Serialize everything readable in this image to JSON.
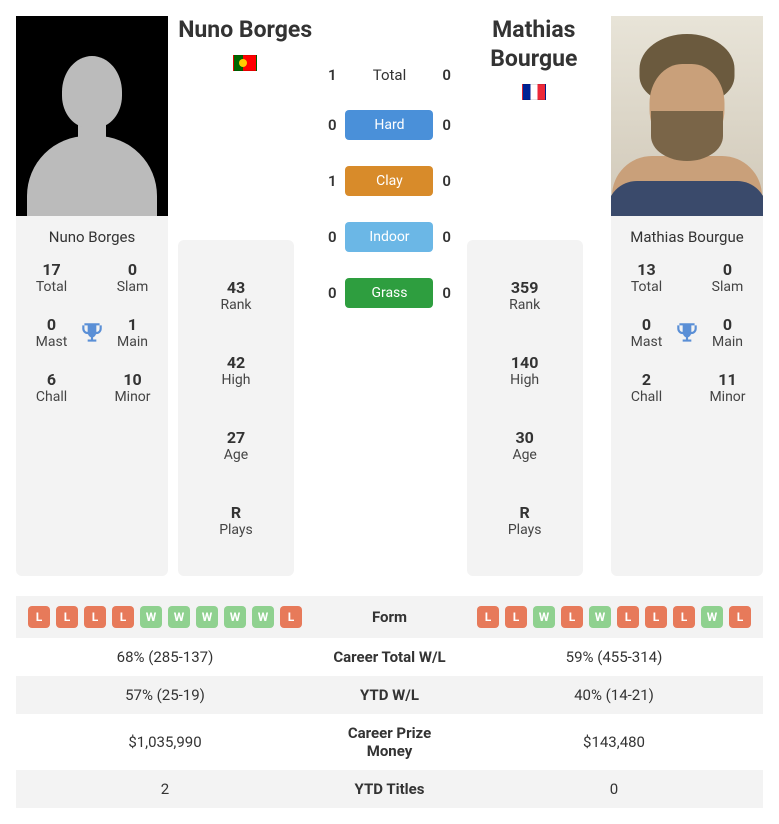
{
  "player1": {
    "name": "Nuno Borges",
    "flag": "pt",
    "card": {
      "total": {
        "v": "17",
        "l": "Total"
      },
      "slam": {
        "v": "0",
        "l": "Slam"
      },
      "mast": {
        "v": "0",
        "l": "Mast"
      },
      "main": {
        "v": "1",
        "l": "Main"
      },
      "chall": {
        "v": "6",
        "l": "Chall"
      },
      "minor": {
        "v": "10",
        "l": "Minor"
      }
    },
    "block": {
      "rank": {
        "v": "43",
        "l": "Rank"
      },
      "high": {
        "v": "42",
        "l": "High"
      },
      "age": {
        "v": "27",
        "l": "Age"
      },
      "plays": {
        "v": "R",
        "l": "Plays"
      }
    }
  },
  "player2": {
    "name": "Mathias Bourgue",
    "flag": "fr",
    "card": {
      "total": {
        "v": "13",
        "l": "Total"
      },
      "slam": {
        "v": "0",
        "l": "Slam"
      },
      "mast": {
        "v": "0",
        "l": "Mast"
      },
      "main": {
        "v": "0",
        "l": "Main"
      },
      "chall": {
        "v": "2",
        "l": "Chall"
      },
      "minor": {
        "v": "11",
        "l": "Minor"
      }
    },
    "block": {
      "rank": {
        "v": "359",
        "l": "Rank"
      },
      "high": {
        "v": "140",
        "l": "High"
      },
      "age": {
        "v": "30",
        "l": "Age"
      },
      "plays": {
        "v": "R",
        "l": "Plays"
      }
    }
  },
  "h2h": {
    "total": {
      "p1": "1",
      "label": "Total",
      "p2": "0"
    },
    "hard": {
      "p1": "0",
      "label": "Hard",
      "p2": "0",
      "color": "#4a90d9"
    },
    "clay": {
      "p1": "1",
      "label": "Clay",
      "p2": "0",
      "color": "#d88b2a"
    },
    "indoor": {
      "p1": "0",
      "label": "Indoor",
      "p2": "0",
      "color": "#6bb7e6"
    },
    "grass": {
      "p1": "0",
      "label": "Grass",
      "p2": "0",
      "color": "#2e9e3f"
    }
  },
  "form": {
    "label": "Form",
    "p1": [
      "L",
      "L",
      "L",
      "L",
      "W",
      "W",
      "W",
      "W",
      "W",
      "L"
    ],
    "p2": [
      "L",
      "L",
      "W",
      "L",
      "W",
      "L",
      "L",
      "L",
      "W",
      "L"
    ]
  },
  "table": {
    "career_wl": {
      "p1": "68% (285-137)",
      "label": "Career Total W/L",
      "p2": "59% (455-314)"
    },
    "ytd_wl": {
      "p1": "57% (25-19)",
      "label": "YTD W/L",
      "p2": "40% (14-21)"
    },
    "prize": {
      "p1": "$1,035,990",
      "label": "Career Prize Money",
      "p2": "$143,480"
    },
    "ytd_titles": {
      "p1": "2",
      "label": "YTD Titles",
      "p2": "0"
    }
  },
  "style": {
    "badge_colors": {
      "W": "#8fd18f",
      "L": "#e77a5a"
    },
    "trophy_color": "#5a8fd6",
    "card_bg": "#f3f3f3"
  }
}
